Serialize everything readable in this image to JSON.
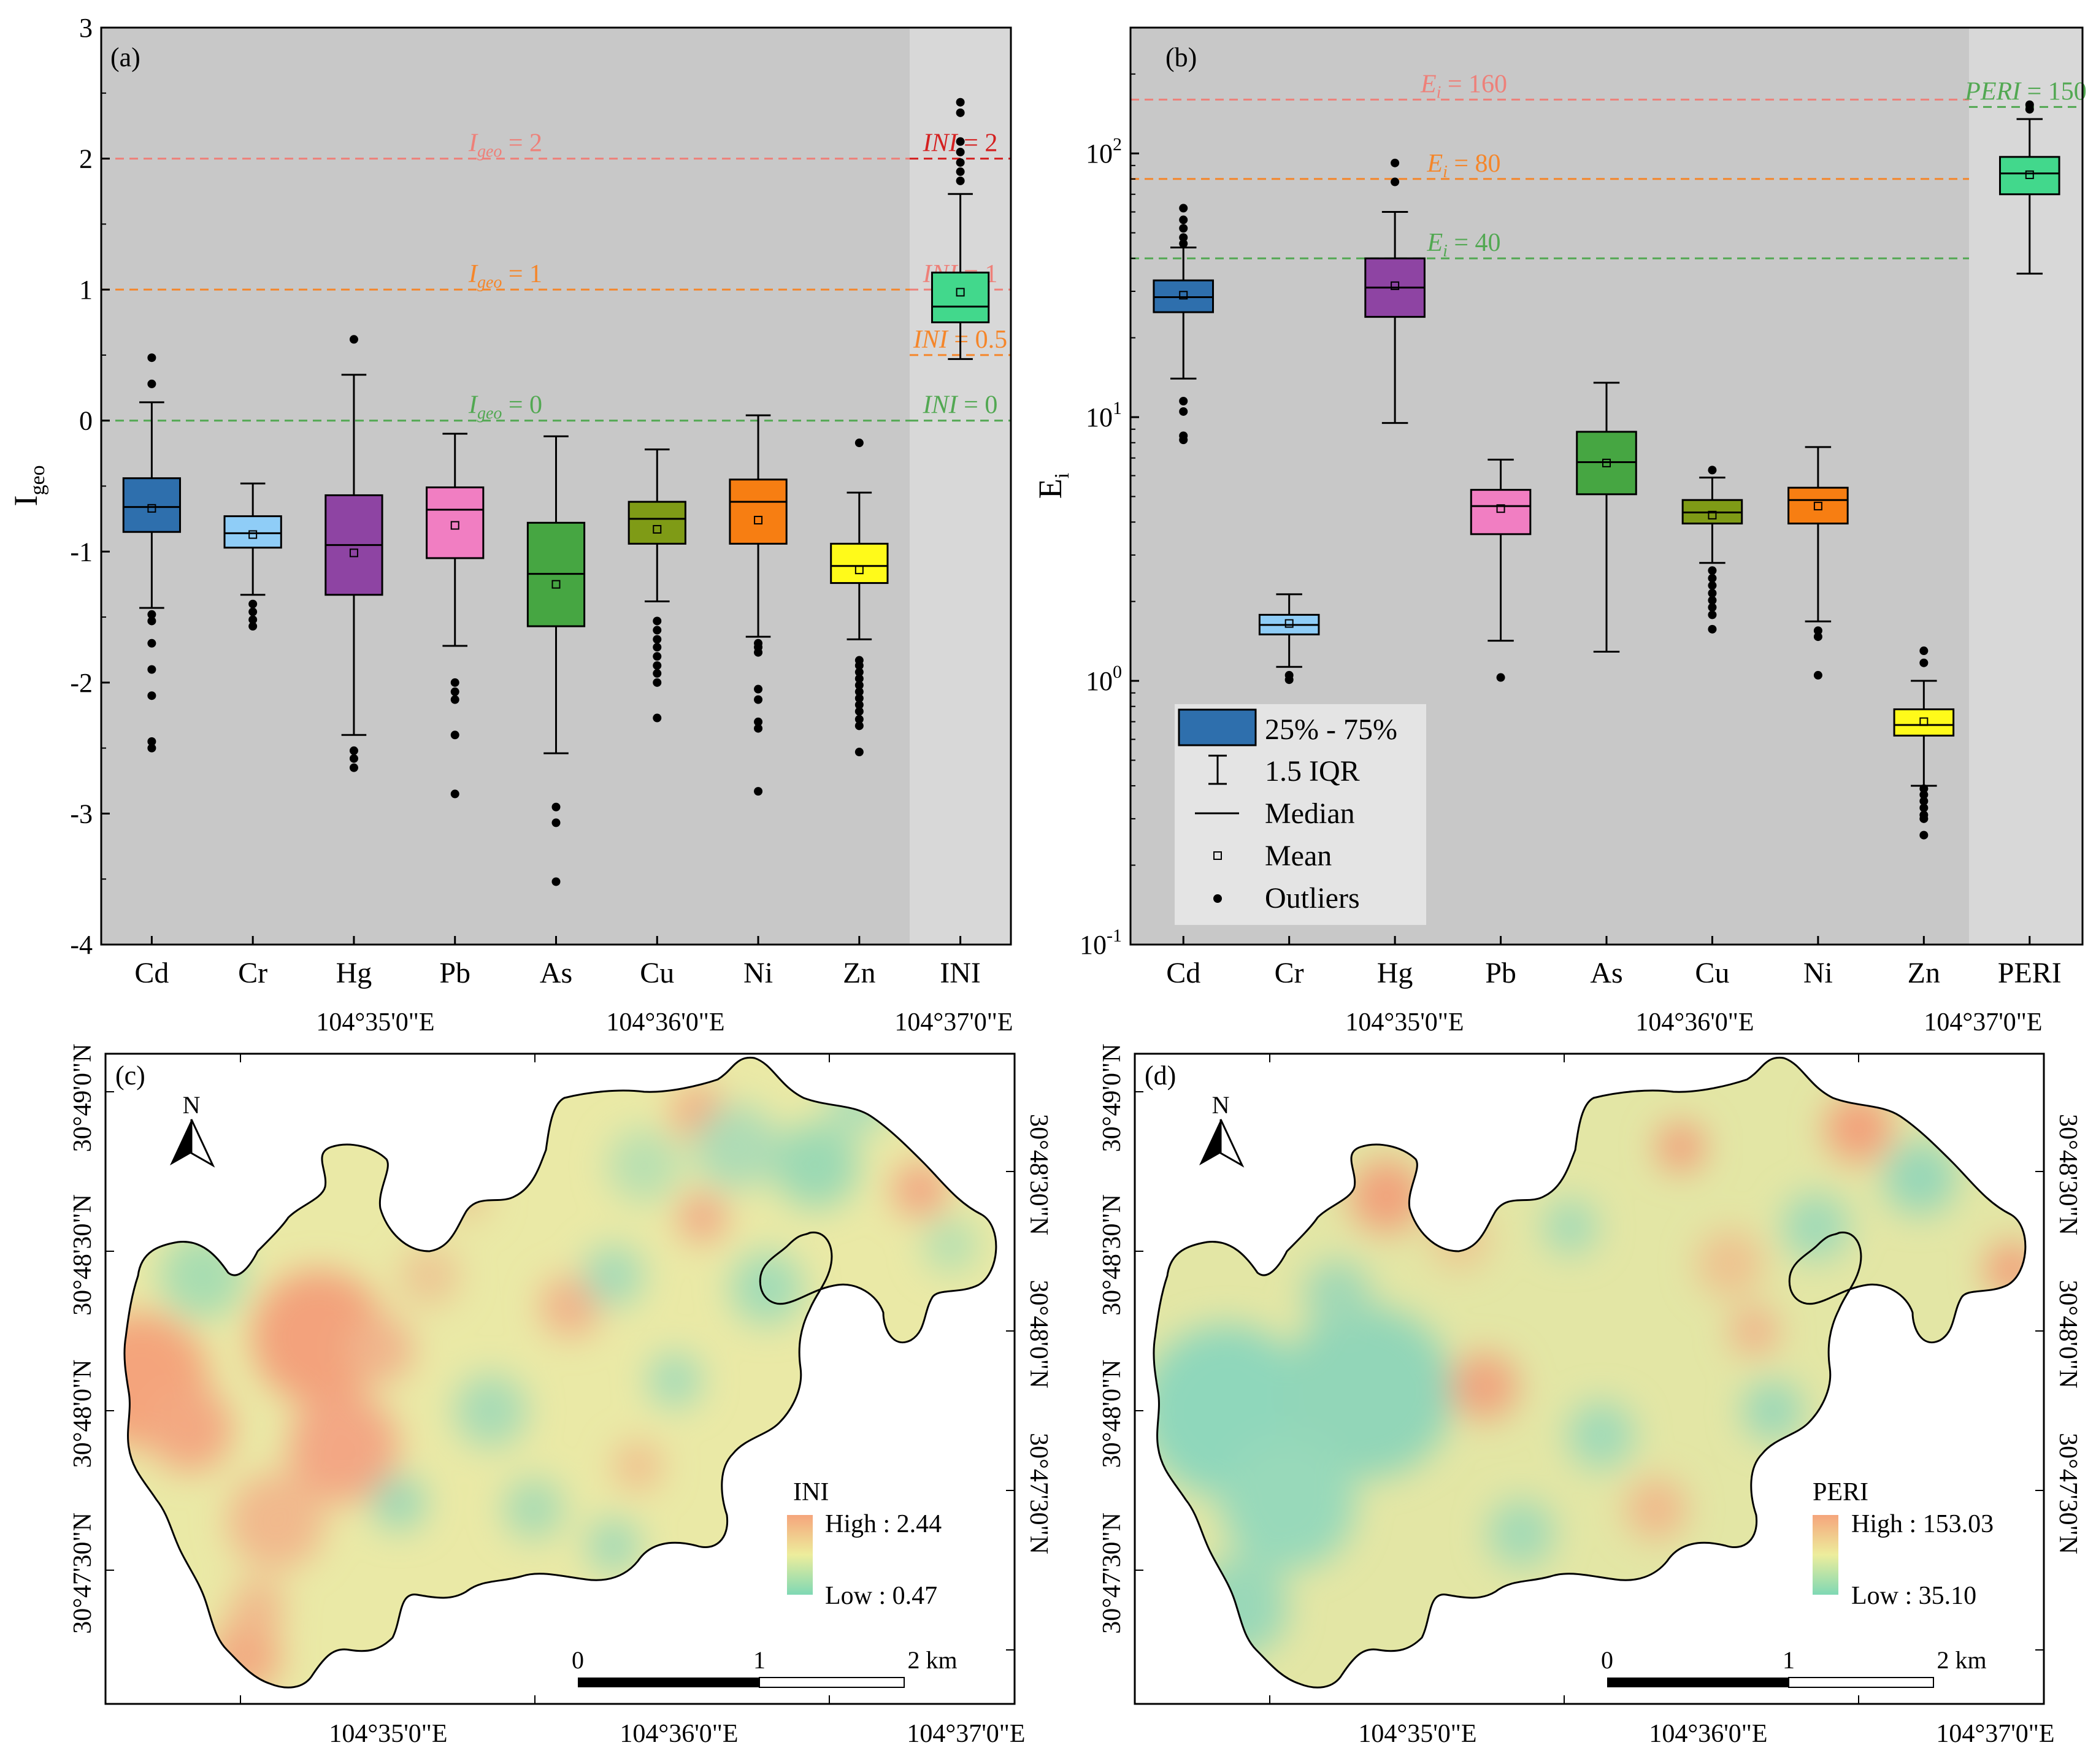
{
  "colors": {
    "plot_bg": "#c8c8c8",
    "plot_bg_right": "#d8d8d8",
    "red_line": "#ee8079",
    "orange_line": "#f5862a",
    "green_line": "#52a852",
    "dark_red_line": "#d42020",
    "box_colors": [
      "#2e6fad",
      "#8fcdf7",
      "#8e44a3",
      "#f17ec2",
      "#46a642",
      "#7f9b16",
      "#f77e12",
      "#fffa1a",
      "#42d88c"
    ]
  },
  "chart_data": [
    {
      "type": "box",
      "panel_label": "(a)",
      "ylabel": "I",
      "ylabel_sub": "geo",
      "yscale": "linear",
      "ylim": [
        -4,
        3
      ],
      "yticks": [
        -4,
        -3,
        -2,
        -1,
        0,
        1,
        2,
        3
      ],
      "ytick_labels": [
        "-4",
        "-3",
        "-2",
        "-1",
        "0",
        "1",
        "2",
        "3"
      ],
      "categories": [
        "Cd",
        "Cr",
        "Hg",
        "Pb",
        "As",
        "Cu",
        "Ni",
        "Zn",
        "INI"
      ],
      "series": [
        {
          "name": "Cd",
          "q1": -0.85,
          "median": -0.66,
          "q3": -0.44,
          "mean": -0.67,
          "whisker_low": -1.43,
          "whisker_high": 0.14,
          "outliers": [
            0.48,
            0.28,
            -1.48,
            -1.53,
            -1.7,
            -1.9,
            -2.1,
            -2.45,
            -2.5
          ]
        },
        {
          "name": "Cr",
          "q1": -0.97,
          "median": -0.86,
          "q3": -0.73,
          "mean": -0.87,
          "whisker_low": -1.33,
          "whisker_high": -0.48,
          "outliers": [
            -1.4,
            -1.46,
            -1.52,
            -1.57
          ]
        },
        {
          "name": "Hg",
          "q1": -1.33,
          "median": -0.95,
          "q3": -0.57,
          "mean": -1.01,
          "whisker_low": -2.4,
          "whisker_high": 0.35,
          "outliers": [
            0.62,
            -2.52,
            -2.58,
            -2.65
          ]
        },
        {
          "name": "Pb",
          "q1": -1.05,
          "median": -0.68,
          "q3": -0.51,
          "mean": -0.8,
          "whisker_low": -1.72,
          "whisker_high": -0.1,
          "outliers": [
            -2.0,
            -2.07,
            -2.13,
            -2.4,
            -2.85
          ]
        },
        {
          "name": "As",
          "q1": -1.57,
          "median": -1.17,
          "q3": -0.78,
          "mean": -1.25,
          "whisker_low": -2.54,
          "whisker_high": -0.12,
          "outliers": [
            -2.95,
            -3.07,
            -3.52
          ]
        },
        {
          "name": "Cu",
          "q1": -0.94,
          "median": -0.75,
          "q3": -0.62,
          "mean": -0.83,
          "whisker_low": -1.38,
          "whisker_high": -0.22,
          "outliers": [
            -1.53,
            -1.6,
            -1.67,
            -1.73,
            -1.8,
            -1.87,
            -1.93,
            -2.0,
            -2.27
          ]
        },
        {
          "name": "Ni",
          "q1": -0.94,
          "median": -0.62,
          "q3": -0.45,
          "mean": -0.76,
          "whisker_low": -1.65,
          "whisker_high": 0.04,
          "outliers": [
            -1.7,
            -1.73,
            -1.77,
            -2.05,
            -2.13,
            -2.3,
            -2.35,
            -2.83
          ]
        },
        {
          "name": "Zn",
          "q1": -1.24,
          "median": -1.11,
          "q3": -0.94,
          "mean": -1.14,
          "whisker_low": -1.67,
          "whisker_high": -0.55,
          "outliers": [
            -0.17,
            -1.83,
            -1.87,
            -1.92,
            -1.97,
            -2.02,
            -2.07,
            -2.12,
            -2.17,
            -2.22,
            -2.28,
            -2.33,
            -2.53
          ]
        },
        {
          "name": "INI",
          "q1": 0.75,
          "median": 0.87,
          "q3": 1.13,
          "mean": 0.98,
          "whisker_low": 0.47,
          "whisker_high": 1.73,
          "outliers": [
            2.43,
            2.35,
            2.13,
            2.05,
            1.97,
            1.9,
            1.83
          ]
        }
      ],
      "reference_lines": [
        {
          "value": 2,
          "color": "#ee8079",
          "prefix": "I",
          "sub": "geo",
          "suffix": " = 2",
          "span": "main"
        },
        {
          "value": 1,
          "color": "#f5862a",
          "prefix": "I",
          "sub": "geo",
          "suffix": " = 1",
          "span": "main"
        },
        {
          "value": 0,
          "color": "#52a852",
          "prefix": "I",
          "sub": "geo",
          "suffix": " = 0",
          "span": "main"
        },
        {
          "value": 2,
          "color": "#d42020",
          "prefix": "INI",
          "sub": "",
          "suffix": " = 2",
          "span": "side"
        },
        {
          "value": 1,
          "color": "#ee8079",
          "prefix": "INI",
          "sub": "",
          "suffix": " = 1",
          "span": "side"
        },
        {
          "value": 0.5,
          "color": "#f5862a",
          "prefix": "INI",
          "sub": "",
          "suffix": " = 0.5",
          "span": "side"
        },
        {
          "value": 0,
          "color": "#52a852",
          "prefix": "INI",
          "sub": "",
          "suffix": " = 0",
          "span": "side"
        }
      ]
    },
    {
      "type": "box",
      "panel_label": "(b)",
      "ylabel": "E",
      "ylabel_sub": "i",
      "yscale": "log",
      "ylim": [
        0.1,
        300
      ],
      "yticks": [
        0.1,
        1,
        10,
        100
      ],
      "ytick_labels": [
        {
          "base": "10",
          "exp": "-1"
        },
        {
          "base": "10",
          "exp": "0"
        },
        {
          "base": "10",
          "exp": "1"
        },
        {
          "base": "10",
          "exp": "2"
        }
      ],
      "categories": [
        "Cd",
        "Cr",
        "Hg",
        "Pb",
        "As",
        "Cu",
        "Ni",
        "Zn",
        "PERI"
      ],
      "series": [
        {
          "name": "Cd",
          "q1": 25,
          "median": 28.5,
          "q3": 33,
          "mean": 29,
          "whisker_low": 14,
          "whisker_high": 44,
          "outliers": [
            62,
            56,
            52,
            48,
            45.5,
            11.5,
            10.5,
            8.5,
            8.2
          ]
        },
        {
          "name": "Cr",
          "q1": 1.5,
          "median": 1.63,
          "q3": 1.78,
          "mean": 1.65,
          "whisker_low": 1.13,
          "whisker_high": 2.13,
          "outliers": [
            1.05,
            1.01
          ]
        },
        {
          "name": "Hg",
          "q1": 24,
          "median": 31,
          "q3": 40,
          "mean": 31.5,
          "whisker_low": 9.5,
          "whisker_high": 60,
          "outliers": [
            92,
            78
          ]
        },
        {
          "name": "Pb",
          "q1": 3.6,
          "median": 4.6,
          "q3": 5.3,
          "mean": 4.5,
          "whisker_low": 1.42,
          "whisker_high": 6.9,
          "outliers": [
            1.03
          ]
        },
        {
          "name": "As",
          "q1": 5.1,
          "median": 6.75,
          "q3": 8.8,
          "mean": 6.7,
          "whisker_low": 1.29,
          "whisker_high": 13.5,
          "outliers": []
        },
        {
          "name": "Cu",
          "q1": 3.95,
          "median": 4.35,
          "q3": 4.85,
          "mean": 4.25,
          "whisker_low": 2.8,
          "whisker_high": 5.9,
          "outliers": [
            6.3,
            2.62,
            2.45,
            2.3,
            2.15,
            2.02,
            1.9,
            1.78,
            1.57
          ]
        },
        {
          "name": "Ni",
          "q1": 3.95,
          "median": 4.85,
          "q3": 5.4,
          "mean": 4.6,
          "whisker_low": 1.68,
          "whisker_high": 7.7,
          "outliers": [
            1.55,
            1.47,
            1.05
          ]
        },
        {
          "name": "Zn",
          "q1": 0.62,
          "median": 0.68,
          "q3": 0.78,
          "mean": 0.7,
          "whisker_low": 0.4,
          "whisker_high": 1.0,
          "outliers": [
            1.3,
            1.17,
            0.39,
            0.37,
            0.35,
            0.33,
            0.31,
            0.3,
            0.26
          ]
        },
        {
          "name": "PERI",
          "q1": 70,
          "median": 84,
          "q3": 97,
          "mean": 83,
          "whisker_low": 35,
          "whisker_high": 135,
          "outliers": [
            153,
            147
          ]
        }
      ],
      "reference_lines": [
        {
          "value": 160,
          "color": "#ee8079",
          "prefix": "E",
          "sub": "i",
          "suffix": " = 160",
          "span": "main"
        },
        {
          "value": 80,
          "color": "#f5862a",
          "prefix": "E",
          "sub": "i",
          "suffix": " = 80",
          "span": "main"
        },
        {
          "value": 40,
          "color": "#52a852",
          "prefix": "E",
          "sub": "i",
          "suffix": " = 40",
          "span": "main"
        },
        {
          "value": 150,
          "color": "#52a852",
          "prefix": "PERI",
          "sub": "",
          "suffix": " = 150",
          "span": "side"
        }
      ],
      "legend": {
        "placement": "bottom-left",
        "items": [
          "25% - 75%",
          "1.5 IQR",
          "Median",
          "Mean",
          "Outliers"
        ]
      }
    },
    {
      "type": "map",
      "panel_label": "(c)",
      "north_label": "N",
      "legend_title": "INI",
      "legend_high": "High : 2.44",
      "legend_low": "Low : 0.47",
      "scale_labels": [
        "0",
        "1",
        "2 km"
      ],
      "lon_labels": [
        "104°35'0\"E",
        "104°36'0\"E",
        "104°37'0\"E"
      ],
      "lat_labels": [
        "30°49'0\"N",
        "30°48'30\"N",
        "30°48'0\"N",
        "30°47'30\"N"
      ]
    },
    {
      "type": "map",
      "panel_label": "(d)",
      "north_label": "N",
      "legend_title": "PERI",
      "legend_high": "High : 153.03",
      "legend_low": "Low : 35.10",
      "scale_labels": [
        "0",
        "1",
        "2 km"
      ],
      "lon_labels": [
        "104°35'0\"E",
        "104°36'0\"E",
        "104°37'0\"E"
      ],
      "lat_labels": [
        "30°49'0\"N",
        "30°48'30\"N",
        "30°48'0\"N",
        "30°47'30\"N"
      ]
    }
  ]
}
